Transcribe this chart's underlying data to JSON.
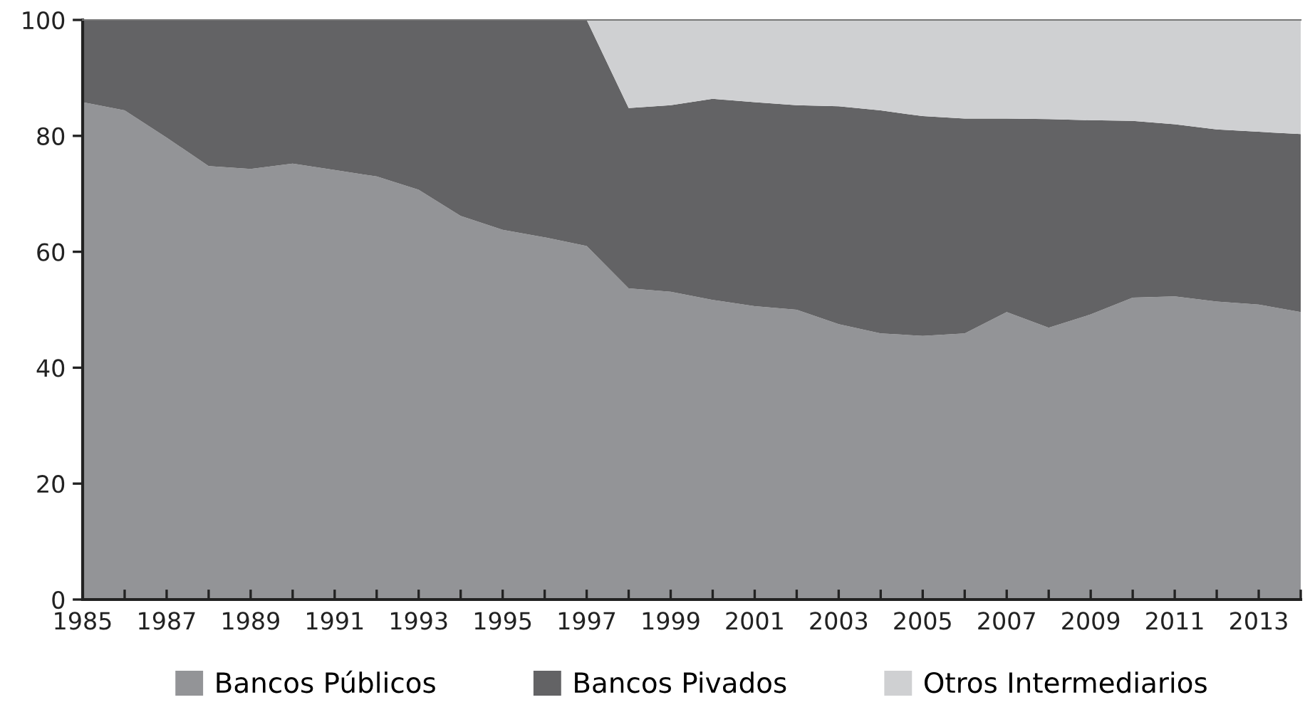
{
  "chart_data": {
    "type": "area",
    "stacked": true,
    "x": [
      1985,
      1986,
      1987,
      1988,
      1989,
      1990,
      1991,
      1992,
      1993,
      1994,
      1995,
      1996,
      1997,
      1998,
      1999,
      2000,
      2001,
      2002,
      2003,
      2004,
      2005,
      2006,
      2007,
      2008,
      2009,
      2010,
      2011,
      2012,
      2013,
      2014
    ],
    "series": [
      {
        "name": "Bancos Públicos",
        "color": "#939497",
        "values": [
          85.8,
          84.4,
          79.7,
          74.8,
          74.3,
          75.2,
          74.1,
          73.0,
          70.7,
          66.2,
          63.8,
          62.5,
          61.0,
          53.7,
          53.1,
          51.7,
          50.6,
          50.0,
          47.5,
          45.9,
          45.5,
          45.9,
          49.6,
          46.9,
          49.2,
          52.1,
          52.3,
          51.4,
          50.9,
          49.6
        ]
      },
      {
        "name": "Bancos Pivados",
        "color": "#636365",
        "values": [
          14.2,
          15.6,
          20.3,
          25.2,
          25.7,
          24.8,
          25.9,
          27.0,
          29.3,
          33.8,
          36.2,
          37.5,
          39.0,
          31.1,
          32.2,
          34.7,
          35.2,
          35.3,
          37.6,
          38.5,
          37.9,
          37.1,
          33.4,
          36.0,
          33.5,
          30.5,
          29.7,
          29.7,
          29.8,
          30.7
        ]
      },
      {
        "name": "Otros Intermediarios",
        "color": "#cfd0d2",
        "values": [
          0,
          0,
          0,
          0,
          0,
          0,
          0,
          0,
          0,
          0,
          0,
          0,
          0,
          15.2,
          14.7,
          13.6,
          14.2,
          14.7,
          14.9,
          15.6,
          16.6,
          17.0,
          17.0,
          17.1,
          17.3,
          17.4,
          18.0,
          18.9,
          19.3,
          19.7
        ]
      }
    ],
    "xlim": [
      1985,
      2014
    ],
    "xticks": [
      1985,
      {
        "value": 1986,
        "label": null
      },
      1987,
      {
        "value": 1988,
        "label": null
      },
      1989,
      {
        "value": 1990,
        "label": null
      },
      1991,
      {
        "value": 1992,
        "label": null
      },
      1993,
      {
        "value": 1994,
        "label": null
      },
      1995,
      {
        "value": 1996,
        "label": null
      },
      1997,
      {
        "value": 1998,
        "label": null
      },
      1999,
      {
        "value": 2000,
        "label": null
      },
      2001,
      {
        "value": 2002,
        "label": null
      },
      2003,
      {
        "value": 2004,
        "label": null
      },
      2005,
      {
        "value": 2006,
        "label": null
      },
      2007,
      {
        "value": 2008,
        "label": null
      },
      2009,
      {
        "value": 2010,
        "label": null
      },
      2011,
      {
        "value": 2012,
        "label": null
      },
      2013,
      {
        "value": 2014,
        "label": null
      }
    ],
    "ylim": [
      0,
      100
    ],
    "yticks": [
      0,
      20,
      40,
      60,
      80,
      100
    ],
    "grid": false,
    "legend": "bottom"
  }
}
